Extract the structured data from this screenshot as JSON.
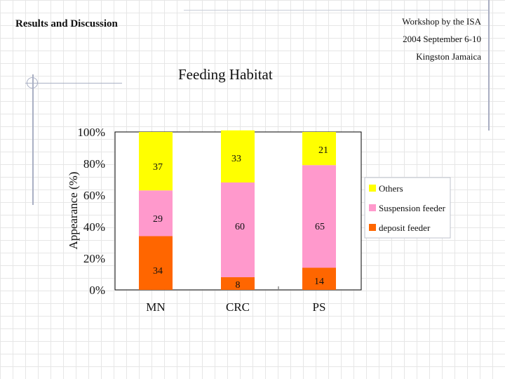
{
  "header": {
    "section": "Results and Discussion",
    "workshop": "Workshop by the ISA",
    "dates": "2004 September 6-10",
    "location": "Kingston Jamaica"
  },
  "chart_data": {
    "type": "bar",
    "stacked": true,
    "percent": true,
    "title": "Feeding Habitat",
    "xlabel": "",
    "ylabel": "Appearance (%)",
    "categories": [
      "MN",
      "CRC",
      "PS"
    ],
    "series": [
      {
        "name": "deposit feeder",
        "values": [
          34,
          8,
          14
        ],
        "color": "#ff6600"
      },
      {
        "name": "Suspension feeder",
        "values": [
          29,
          60,
          65
        ],
        "color": "#ff99cc"
      },
      {
        "name": "Others",
        "values": [
          37,
          33,
          21
        ],
        "color": "#ffff00"
      }
    ],
    "yticks": [
      "0%",
      "20%",
      "40%",
      "60%",
      "80%",
      "100%"
    ],
    "ylim": [
      0,
      100
    ],
    "legend": {
      "position": "right",
      "order": [
        "Others",
        "Suspension feeder",
        "deposit feeder"
      ]
    },
    "grid": false
  }
}
